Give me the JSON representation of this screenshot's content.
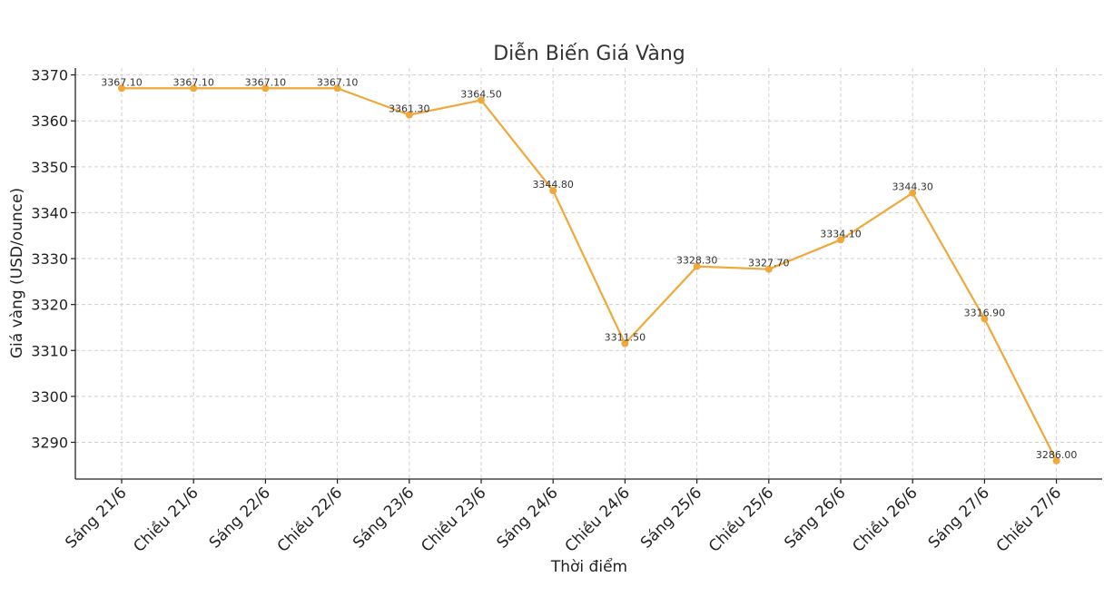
{
  "chart_data": {
    "type": "line",
    "title": "Diễn Biến Giá Vàng",
    "xlabel": "Thời điểm",
    "ylabel": "Giá vàng (USD/ounce)",
    "categories": [
      "Sáng 21/6",
      "Chiều 21/6",
      "Sáng 22/6",
      "Chiều 22/6",
      "Sáng 23/6",
      "Chiều 23/6",
      "Sáng 24/6",
      "Chiều 24/6",
      "Sáng 25/6",
      "Chiều 25/6",
      "Sáng 26/6",
      "Chiều 26/6",
      "Sáng 27/6",
      "Chiều 27/6"
    ],
    "values": [
      3367.1,
      3367.1,
      3367.1,
      3367.1,
      3361.3,
      3364.5,
      3344.8,
      3311.5,
      3328.3,
      3327.7,
      3334.1,
      3344.3,
      3316.9,
      3286.0
    ],
    "data_labels": [
      "3367.10",
      "3367.10",
      "3367.10",
      "3367.10",
      "3361.30",
      "3364.50",
      "3344.80",
      "3311.50",
      "3328.30",
      "3327.70",
      "3334.10",
      "3344.30",
      "3316.90",
      "3286.00"
    ],
    "yticks": [
      3290,
      3300,
      3310,
      3320,
      3330,
      3340,
      3350,
      3360,
      3370
    ],
    "ylim": [
      3282,
      3371.5
    ],
    "grid": true,
    "color": "#f0a83a"
  }
}
